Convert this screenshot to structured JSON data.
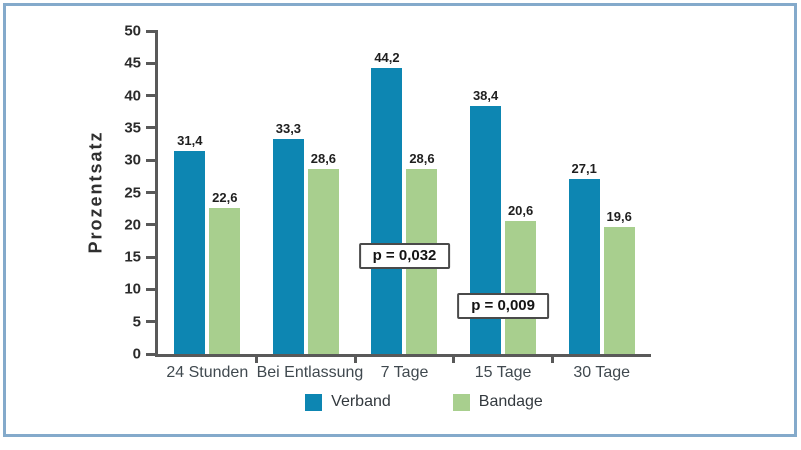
{
  "frame": {
    "border_color": "#84aacb",
    "background": "#ffffff"
  },
  "chart_data": {
    "type": "bar",
    "title": "",
    "xlabel": "",
    "ylabel": "Prozentsatz",
    "ylim": [
      0,
      50
    ],
    "ytick_step": 5,
    "ytick_labels": [
      "0",
      "5",
      "10",
      "15",
      "20",
      "25",
      "30",
      "35",
      "40",
      "45",
      "50"
    ],
    "grid": false,
    "decimal_separator": ",",
    "axis_color": "#595959",
    "categories": [
      "24 Stunden",
      "Bei Entlassung",
      "7 Tage",
      "15 Tage",
      "30 Tage"
    ],
    "series": [
      {
        "name": "Verband",
        "color": "#0d86b2",
        "values": [
          31.4,
          33.3,
          44.2,
          38.4,
          27.1
        ]
      },
      {
        "name": "Bandage",
        "color": "#a8cf8e",
        "values": [
          22.6,
          28.6,
          28.6,
          20.6,
          19.6
        ]
      }
    ],
    "annotations": [
      {
        "text": "p = 0,032",
        "category_index": 2,
        "y_value": 15.2
      },
      {
        "text": "p = 0,009",
        "category_index": 3,
        "y_value": 7.5
      }
    ],
    "legend_position": "bottom"
  }
}
